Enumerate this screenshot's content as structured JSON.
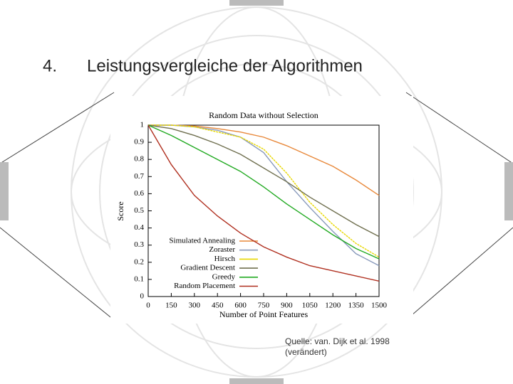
{
  "slide": {
    "number": "4.",
    "heading": "Leistungsvergleiche der Algorithmen",
    "source": [
      "Quelle: van. Dijk et al. 1998",
      "(verändert)"
    ]
  },
  "chart_data": {
    "type": "line",
    "title": "Random Data without Selection",
    "x_label": "Number of Point Features",
    "y_label": "Score",
    "x": [
      0,
      150,
      300,
      450,
      600,
      750,
      900,
      1050,
      1200,
      1350,
      1500
    ],
    "xlim": [
      0,
      1500
    ],
    "xticks": [
      0,
      150,
      300,
      450,
      600,
      750,
      900,
      1050,
      1200,
      1350,
      1500
    ],
    "ylim": [
      0,
      1
    ],
    "yticks": [
      0,
      0.1,
      0.2,
      0.3,
      0.4,
      0.5,
      0.6,
      0.7,
      0.8,
      0.9,
      1
    ],
    "legend": "lower-left",
    "series": [
      {
        "name": "Simulated Annealing",
        "color": "#e8883a",
        "values": [
          1,
          1,
          0.995,
          0.98,
          0.96,
          0.93,
          0.88,
          0.82,
          0.76,
          0.68,
          0.59
        ]
      },
      {
        "name": "Zoraster",
        "color": "#8899bb",
        "values": [
          1,
          1,
          0.99,
          0.97,
          0.93,
          0.84,
          0.67,
          0.52,
          0.38,
          0.25,
          0.18
        ]
      },
      {
        "name": "Hirsch",
        "color": "#e8d800",
        "values": [
          1,
          1,
          0.99,
          0.96,
          0.93,
          0.86,
          0.72,
          0.55,
          0.42,
          0.31,
          0.23
        ]
      },
      {
        "name": "Gradient Descent",
        "color": "#707050",
        "values": [
          1,
          0.98,
          0.94,
          0.89,
          0.83,
          0.75,
          0.67,
          0.58,
          0.5,
          0.42,
          0.35
        ]
      },
      {
        "name": "Greedy",
        "color": "#22aa22",
        "values": [
          1,
          0.94,
          0.87,
          0.8,
          0.73,
          0.64,
          0.54,
          0.45,
          0.36,
          0.28,
          0.22
        ]
      },
      {
        "name": "Random Placement",
        "color": "#b03020",
        "values": [
          1,
          0.77,
          0.59,
          0.47,
          0.37,
          0.29,
          0.23,
          0.18,
          0.15,
          0.12,
          0.09
        ]
      }
    ]
  }
}
